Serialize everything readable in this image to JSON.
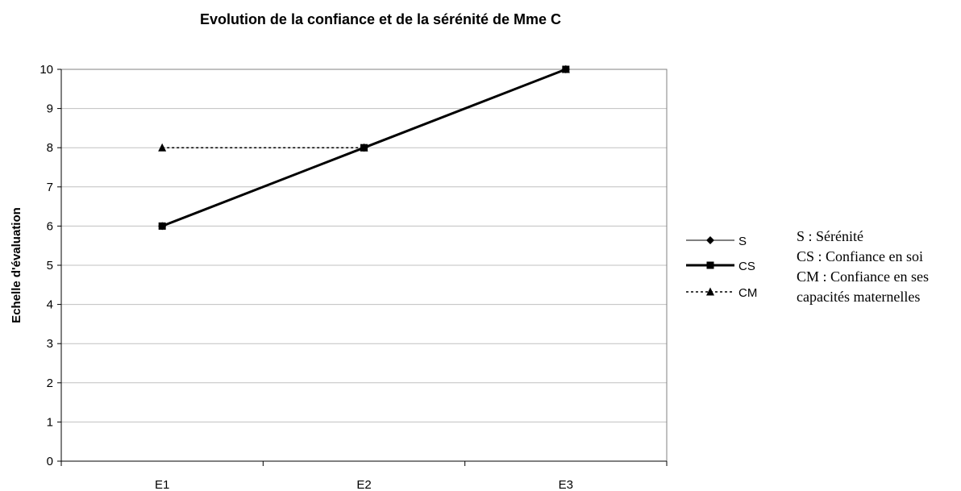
{
  "chart_data": {
    "type": "line",
    "title": "Evolution de la confiance et de la sérénité de Mme C",
    "xlabel": "",
    "ylabel": "Echelle d'évaluation",
    "categories": [
      "E1",
      "E2",
      "E3"
    ],
    "ylim": [
      0,
      10
    ],
    "yticks": [
      0,
      1,
      2,
      3,
      4,
      5,
      6,
      7,
      8,
      9,
      10
    ],
    "grid": true,
    "legend_position": "right",
    "series": [
      {
        "name": "S",
        "values": [
          6,
          8,
          10
        ],
        "marker": "diamond",
        "line": "thin-solid",
        "color": "#000000"
      },
      {
        "name": "CS",
        "values": [
          6,
          8,
          10
        ],
        "marker": "square",
        "line": "thick-solid",
        "color": "#000000"
      },
      {
        "name": "CM",
        "values": [
          8,
          8,
          10
        ],
        "marker": "triangle",
        "line": "dotted",
        "color": "#000000"
      }
    ],
    "legend_notes": [
      "S : Sérénité",
      "CS : Confiance en soi",
      "CM : Confiance en ses",
      "capacités maternelles"
    ]
  }
}
